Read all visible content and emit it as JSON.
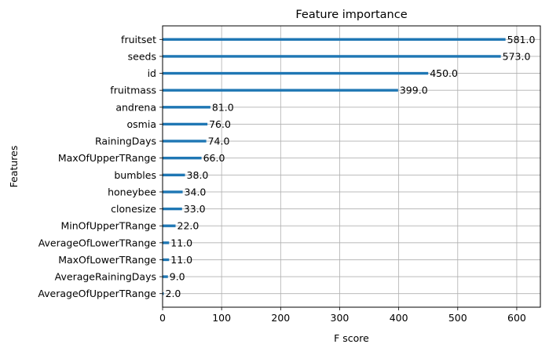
{
  "chart_data": {
    "type": "bar",
    "orientation": "horizontal",
    "title": "Feature importance",
    "xlabel": "F score",
    "ylabel": "Features",
    "xlim": [
      0,
      640
    ],
    "xticks": [
      0,
      100,
      200,
      300,
      400,
      500,
      600
    ],
    "grid": true,
    "bar_color": "#1f77b4",
    "categories": [
      "fruitset",
      "seeds",
      "id",
      "fruitmass",
      "andrena",
      "osmia",
      "RainingDays",
      "MaxOfUpperTRange",
      "bumbles",
      "honeybee",
      "clonesize",
      "MinOfUpperTRange",
      "AverageOfLowerTRange",
      "MaxOfLowerTRange",
      "AverageRainingDays",
      "AverageOfUpperTRange"
    ],
    "values": [
      581.0,
      573.0,
      450.0,
      399.0,
      81.0,
      76.0,
      74.0,
      66.0,
      38.0,
      34.0,
      33.0,
      22.0,
      11.0,
      11.0,
      9.0,
      2.0
    ],
    "value_labels": [
      "581.0",
      "573.0",
      "450.0",
      "399.0",
      "81.0",
      "76.0",
      "74.0",
      "66.0",
      "38.0",
      "34.0",
      "33.0",
      "22.0",
      "11.0",
      "11.0",
      "9.0",
      "2.0"
    ]
  }
}
